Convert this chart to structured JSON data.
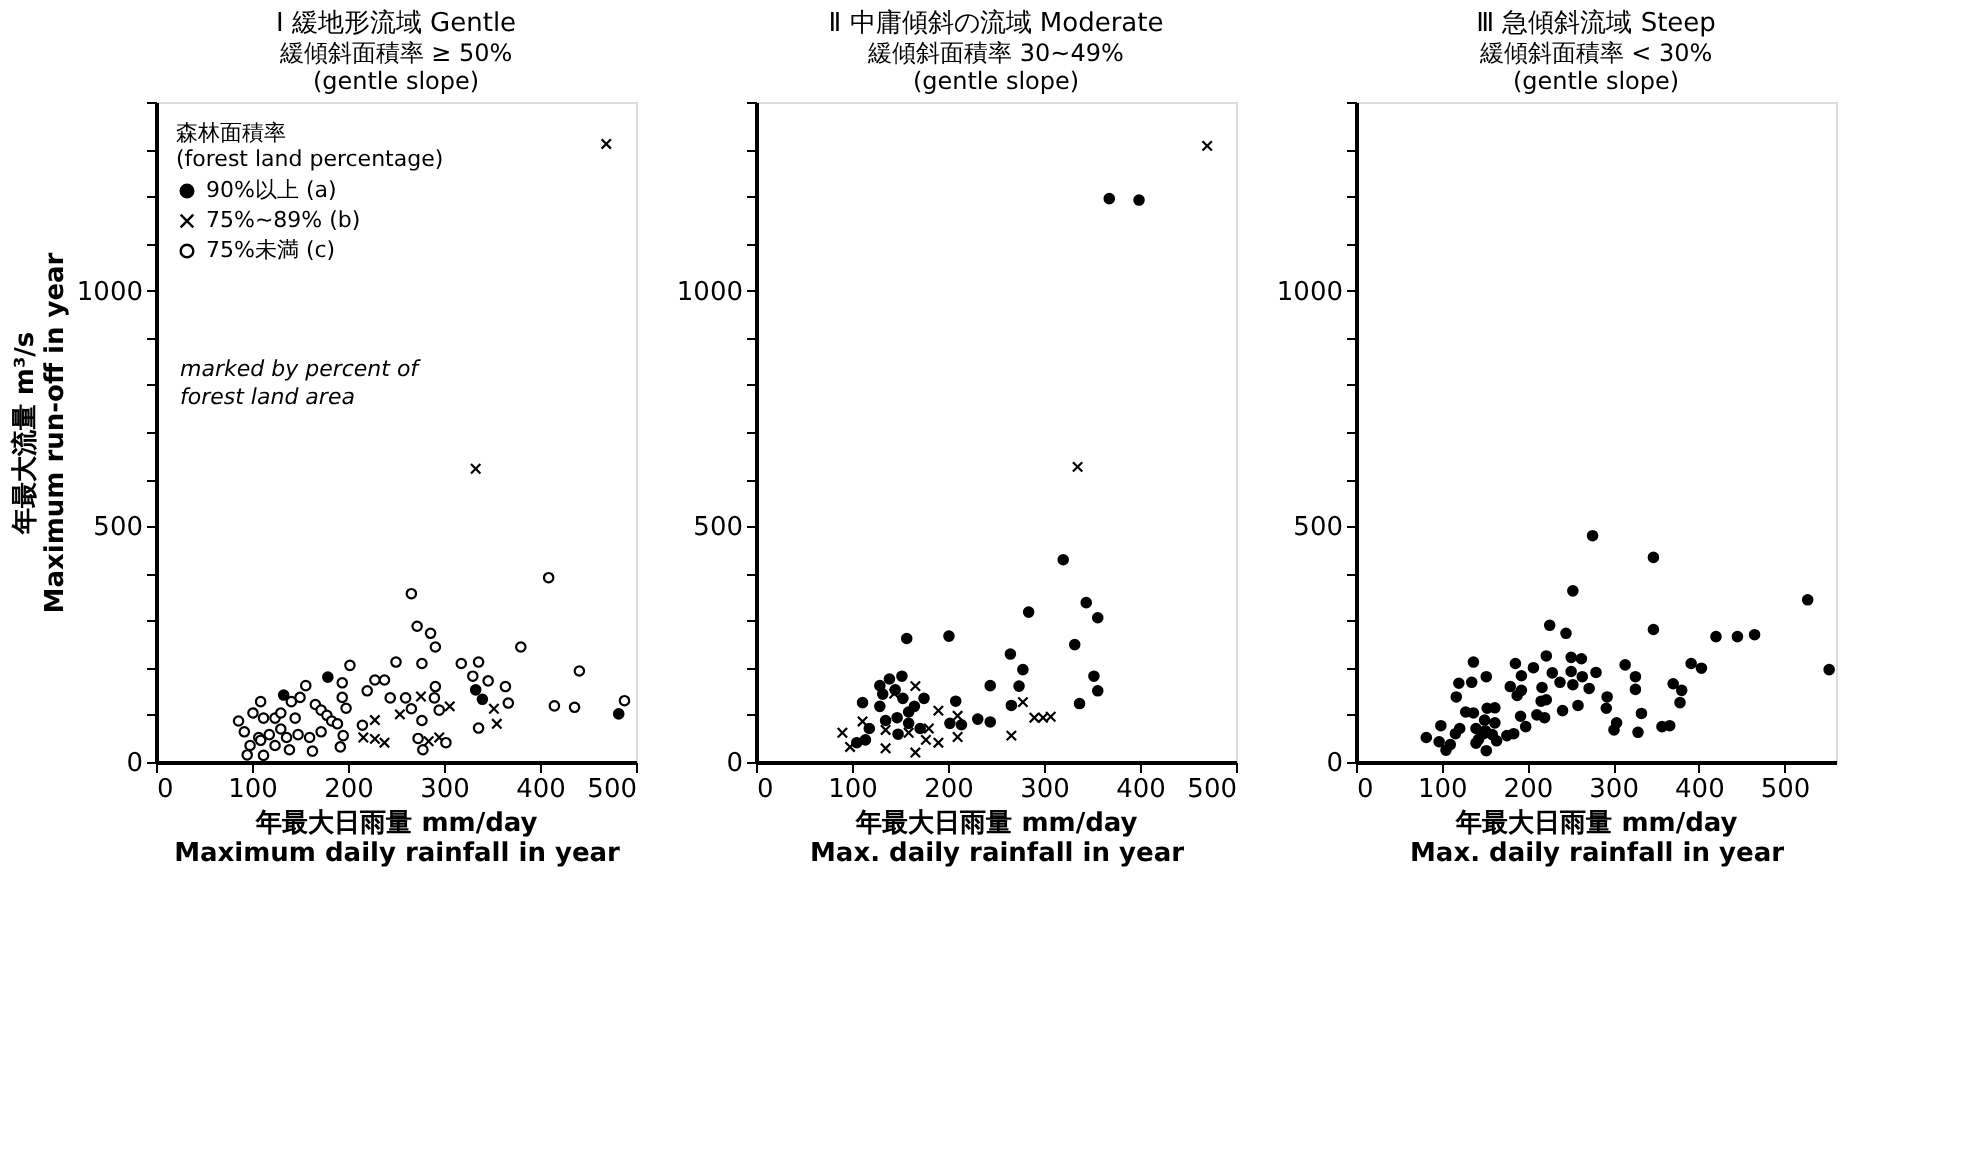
{
  "chart_data": [
    {
      "type": "scatter",
      "title": "Ⅰ 緩地形流域 Gentle",
      "subtitle": "緩傾斜面積率 ≥ 50%\n(gentle slope)",
      "xlabel": "年最大日雨量 mm/day\nMaximum daily rainfall in year",
      "ylabel": "年最大流量 m³/s\nMaximum run-off in year",
      "legend_title": "森林面積率 (forest land percentage)",
      "legend": "top left",
      "annotations": [
        "marked by percent of forest land area"
      ],
      "xlim": [
        0,
        500
      ],
      "xticks": [
        0,
        100,
        200,
        300,
        400,
        500
      ],
      "ylim": [
        0,
        1400
      ],
      "yticks": [
        0,
        {
          "value": 100,
          "label": null
        },
        {
          "value": 200,
          "label": null
        },
        {
          "value": 300,
          "label": null
        },
        {
          "value": 400,
          "label": null
        },
        500,
        {
          "value": 600,
          "label": null
        },
        {
          "value": 700,
          "label": null
        },
        {
          "value": 800,
          "label": null
        },
        {
          "value": 900,
          "label": null
        },
        1000,
        {
          "value": 1100,
          "label": null
        },
        {
          "value": 1200,
          "label": null
        },
        {
          "value": 1300,
          "label": null
        },
        {
          "value": 1400,
          "label": null
        }
      ],
      "series": [
        {
          "name": "90%以上 (a)",
          "color": "#000000",
          "marker": "circle",
          "x": [
            179,
            133,
            333,
            340,
            482
          ],
          "values": [
            180,
            142,
            153,
            133,
            102
          ]
        },
        {
          "name": "75%~89% (b)",
          "color": "#000000",
          "marker": "cross",
          "x": [
            276,
            254,
            228,
            306,
            352,
            355,
            216,
            228,
            238,
            284,
            295,
            469,
            333
          ],
          "values": [
            139,
            101,
            89,
            118,
            113,
            81,
            52,
            49,
            41,
            44,
            52,
            1311,
            622
          ]
        },
        {
          "name": "75%未満 (c)",
          "color": "#ffffff",
          "marker": "circle",
          "x": [
            266,
            409,
            272,
            286,
            291,
            380,
            277,
            250,
            202,
            318,
            336,
            441,
            330,
            346,
            364,
            367,
            291,
            238,
            228,
            220,
            244,
            260,
            290,
            266,
            295,
            277,
            415,
            436,
            488,
            336,
            273,
            302,
            278,
            215,
            194,
            194,
            198,
            156,
            150,
            141,
            109,
            86,
            92,
            101,
            112,
            124,
            166,
            172,
            178,
            183,
            189,
            172,
            160,
            148,
            136,
            130,
            118,
            107,
            98,
            95,
            112,
            124,
            139,
            163,
            192,
            195,
            130,
            145,
            109
          ],
          "values": [
            357,
            391,
            288,
            273,
            244,
            244,
            209,
            212,
            205,
            209,
            212,
            193,
            182,
            172,
            160,
            125,
            160,
            174,
            174,
            151,
            136,
            136,
            136,
            113,
            110,
            88,
            119,
            116,
            130,
            72,
            50,
            41,
            26,
            78,
            168,
            137,
            114,
            162,
            137,
            128,
            128,
            87,
            64,
            104,
            93,
            93,
            122,
            110,
            99,
            87,
            81,
            64,
            52,
            58,
            52,
            70,
            58,
            52,
            35,
            15,
            14,
            35,
            26,
            23,
            32,
            56,
            104,
            93,
            46
          ]
        }
      ]
    },
    {
      "type": "scatter",
      "title": "Ⅱ 中庸傾斜の流域 Moderate",
      "subtitle": "緩傾斜面積率 30~49%\n(gentle slope)",
      "xlabel": "年最大日雨量 mm/day\nMax. daily rainfall in year",
      "xlim": [
        0,
        500
      ],
      "xticks": [
        0,
        100,
        200,
        300,
        400,
        500
      ],
      "ylim": [
        0,
        1400
      ],
      "yticks": [
        0,
        {
          "value": 100,
          "label": null
        },
        {
          "value": 200,
          "label": null
        },
        {
          "value": 300,
          "label": null
        },
        {
          "value": 400,
          "label": null
        },
        500,
        {
          "value": 600,
          "label": null
        },
        {
          "value": 700,
          "label": null
        },
        {
          "value": 800,
          "label": null
        },
        {
          "value": 900,
          "label": null
        },
        1000,
        {
          "value": 1100,
          "label": null
        },
        {
          "value": 1200,
          "label": null
        },
        {
          "value": 1300,
          "label": null
        },
        {
          "value": 1400,
          "label": null
        }
      ],
      "series": [
        {
          "color": "#000000",
          "marker": "circle",
          "x": [
            368,
            399,
            320,
            284,
            344,
            356,
            332,
            157,
            201,
            265,
            278,
            244,
            274,
            266,
            337,
            352,
            356,
            231,
            244,
            208,
            202,
            214,
            175,
            111,
            129,
            129,
            139,
            152,
            132,
            145,
            153,
            135,
            147,
            159,
            165,
            114,
            105,
            118,
            148,
            171,
            159
          ],
          "values": [
            1195,
            1192,
            429,
            318,
            338,
            306,
            249,
            262,
            267,
            229,
            196,
            162,
            161,
            120,
            124,
            182,
            151,
            91,
            85,
            129,
            82,
            79,
            135,
            126,
            118,
            162,
            176,
            182,
            144,
            153,
            135,
            88,
            94,
            106,
            118,
            47,
            41,
            71,
            59,
            71,
            82
          ]
        },
        {
          "color": "#000000",
          "marker": "cross",
          "x": [
            470,
            335,
            90,
            98,
            135,
            166,
            144,
            190,
            210,
            190,
            180,
            166,
            111,
            266,
            278,
            290,
            299,
            307,
            210,
            159,
            177,
            135
          ],
          "values": [
            1307,
            626,
            62,
            32,
            29,
            161,
            145,
            109,
            98,
            41,
            71,
            20,
            86,
            56,
            127,
            94,
            94,
            96,
            53,
            62,
            47,
            68
          ]
        }
      ]
    },
    {
      "type": "scatter",
      "title": "Ⅲ 急傾斜流域 Steep",
      "subtitle": "緩傾斜面積率 < 30%\n(gentle slope)",
      "xlabel": "年最大日雨量 mm/day\nMax. daily rainfall in year",
      "xlim": [
        0,
        560
      ],
      "xticks": [
        0,
        100,
        200,
        300,
        400,
        500
      ],
      "ylim": [
        0,
        1400
      ],
      "yticks": [
        0,
        {
          "value": 100,
          "label": null
        },
        {
          "value": 200,
          "label": null
        },
        {
          "value": 300,
          "label": null
        },
        {
          "value": 400,
          "label": null
        },
        500,
        {
          "value": 600,
          "label": null
        },
        {
          "value": 700,
          "label": null
        },
        {
          "value": 800,
          "label": null
        },
        {
          "value": 900,
          "label": null
        },
        1000,
        {
          "value": 1100,
          "label": null
        },
        {
          "value": 1200,
          "label": null
        },
        {
          "value": 1300,
          "label": null
        },
        {
          "value": 1400,
          "label": null
        }
      ],
      "series": [
        {
          "color": "#000000",
          "marker": "circle",
          "x": [
            276,
            347,
            253,
            527,
            347,
            226,
            245,
            420,
            445,
            465,
            391,
            403,
            552,
            314,
            326,
            326,
            333,
            329,
            301,
            304,
            292,
            293,
            370,
            380,
            378,
            357,
            366,
            280,
            272,
            264,
            263,
            251,
            251,
            253,
            259,
            241,
            238,
            229,
            222,
            207,
            193,
            186,
            180,
            188,
            193,
            217,
            216,
            222,
            220,
            211,
            198,
            192,
            184,
            176,
            162,
            162,
            153,
            152,
            137,
            135,
            120,
            117,
            128,
            137,
            150,
            151,
            159,
            164,
            152,
            143,
            140,
            121,
            116,
            110,
            105,
            97,
            99,
            82,
            140,
            149
          ],
          "values": [
            480,
            434,
            363,
            344,
            281,
            290,
            273,
            266,
            266,
            270,
            209,
            199,
            196,
            206,
            181,
            154,
            103,
            63,
            68,
            83,
            114,
            138,
            166,
            152,
            126,
            75,
            77,
            190,
            156,
            181,
            219,
            222,
            192,
            164,
            120,
            109,
            169,
            189,
            225,
            200,
            183,
            209,
            160,
            141,
            152,
            158,
            129,
            132,
            94,
            100,
            75,
            97,
            60,
            56,
            115,
            83,
            114,
            181,
            212,
            169,
            167,
            138,
            106,
            104,
            89,
            66,
            58,
            45,
            24,
            48,
            40,
            71,
            60,
            37,
            25,
            43,
            77,
            52,
            71,
            60
          ]
        }
      ]
    }
  ]
}
